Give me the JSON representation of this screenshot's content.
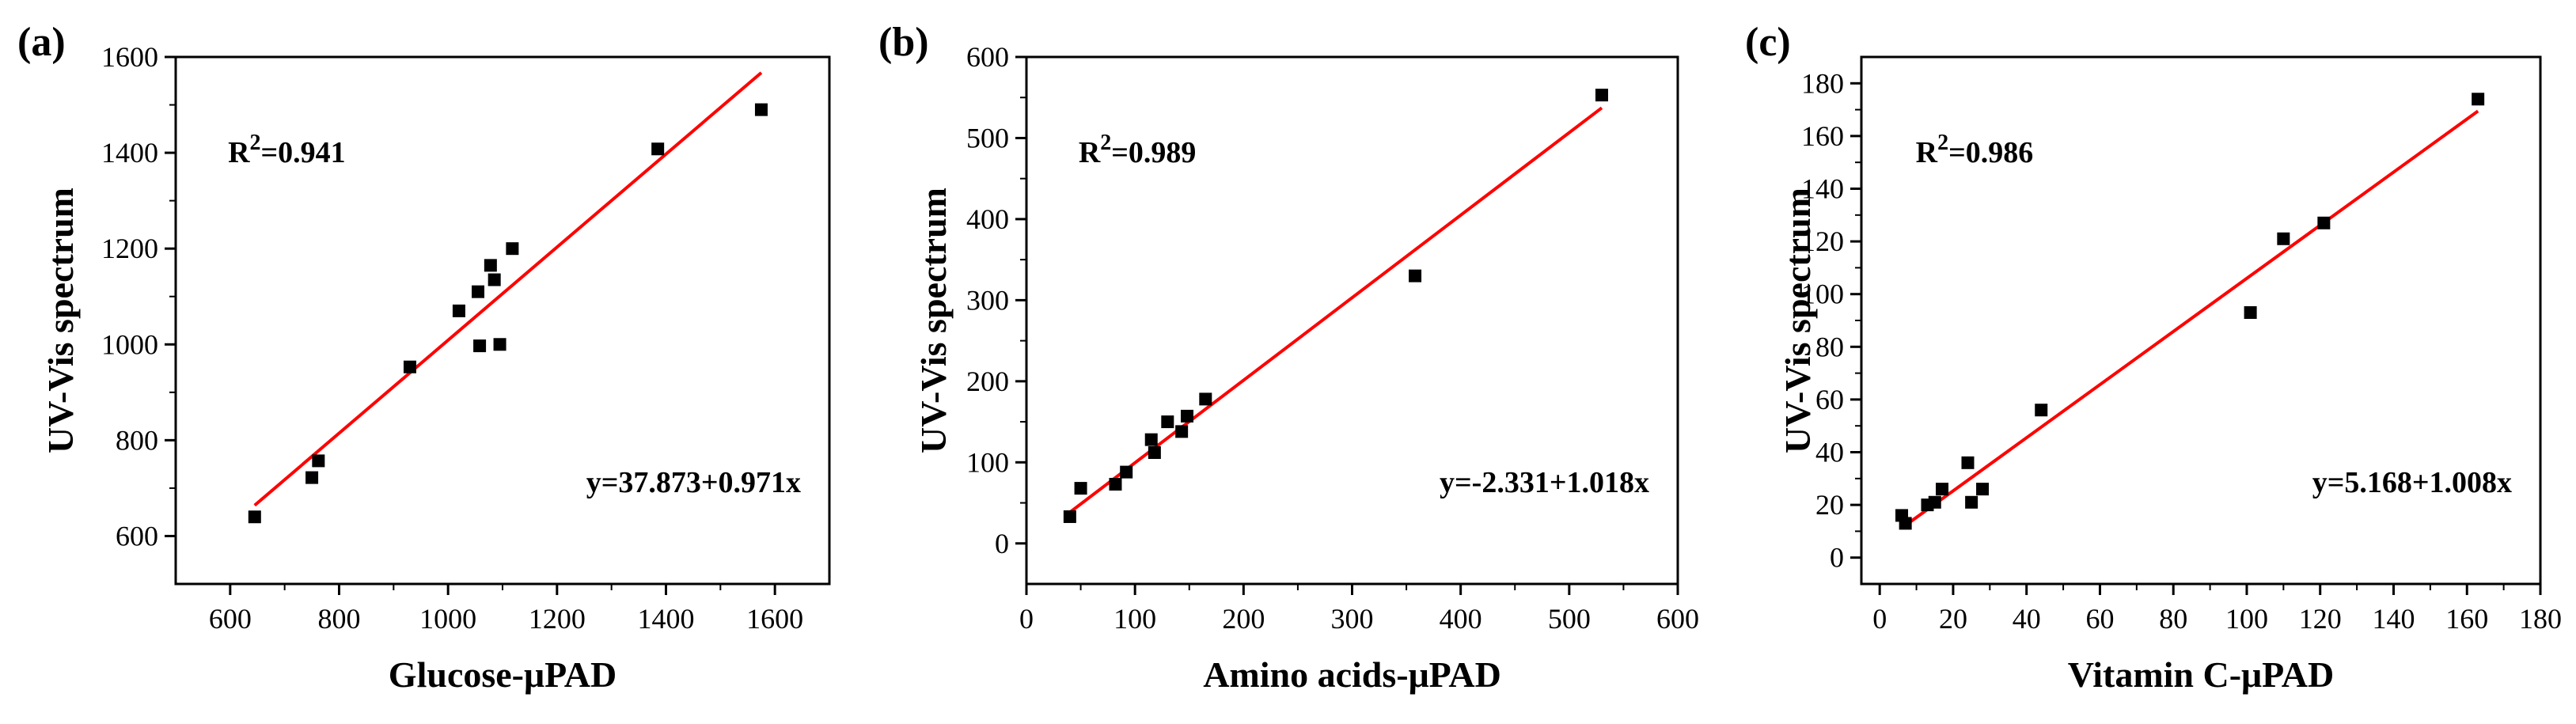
{
  "colors": {
    "fit_line": "#ff0000",
    "marker": "#000000",
    "axis": "#000000"
  },
  "chart_data": [
    {
      "type": "scatter",
      "panel_label": "(a)",
      "xlabel": "Glucose-μPAD",
      "ylabel": "UV-Vis spectrum",
      "xlim": [
        500,
        1700
      ],
      "ylim": [
        500,
        1600
      ],
      "xticks": [
        600,
        800,
        1000,
        1200,
        1400,
        1600
      ],
      "yticks": [
        600,
        800,
        1000,
        1200,
        1400,
        1600
      ],
      "r2_prefix": "R",
      "r2_sup": "2",
      "r2_value": "=0.941",
      "equation": "y=37.873+0.971x",
      "fit": {
        "intercept": 37.873,
        "slope": 0.971,
        "x_range": [
          645,
          1575
        ]
      },
      "series": [
        {
          "x": [
            645,
            750,
            762,
            930,
            1020,
            1055,
            1058,
            1078,
            1085,
            1095,
            1118,
            1385,
            1575
          ],
          "y": [
            640,
            722,
            757,
            953,
            1070,
            1110,
            997,
            1165,
            1135,
            1000,
            1200,
            1408,
            1490
          ]
        }
      ]
    },
    {
      "type": "scatter",
      "panel_label": "(b)",
      "xlabel": "Amino acids-μPAD",
      "ylabel": "UV-Vis spectrum",
      "xlim": [
        0,
        600
      ],
      "ylim": [
        -50,
        600
      ],
      "xticks": [
        0,
        100,
        200,
        300,
        400,
        500,
        600
      ],
      "yticks": [
        0,
        100,
        200,
        300,
        400,
        500,
        600
      ],
      "r2_prefix": "R",
      "r2_sup": "2",
      "r2_value": "=0.989",
      "equation": "y=-2.331+1.018x",
      "fit": {
        "intercept": -2.331,
        "slope": 1.018,
        "x_range": [
          40,
          530
        ]
      },
      "series": [
        {
          "x": [
            40,
            50,
            82,
            92,
            115,
            118,
            130,
            143,
            148,
            165,
            358,
            530
          ],
          "y": [
            33,
            68,
            73,
            88,
            128,
            112,
            150,
            138,
            157,
            178,
            330,
            553
          ]
        }
      ]
    },
    {
      "type": "scatter",
      "panel_label": "(c)",
      "xlabel": "Vitamin C-μPAD",
      "ylabel": "UV-Vis spectrum",
      "xlim": [
        -5,
        180
      ],
      "ylim": [
        -10,
        190
      ],
      "xticks": [
        0,
        20,
        40,
        60,
        80,
        100,
        120,
        140,
        160,
        180
      ],
      "yticks": [
        0,
        20,
        40,
        60,
        80,
        100,
        120,
        140,
        160,
        180
      ],
      "r2_prefix": "R",
      "r2_sup": "2",
      "r2_value": "=0.986",
      "equation": "y=5.168+1.008x",
      "fit": {
        "intercept": 5.168,
        "slope": 1.008,
        "x_range": [
          6,
          163
        ]
      },
      "series": [
        {
          "x": [
            6,
            7,
            13,
            15,
            17,
            24,
            25,
            28,
            44,
            101,
            110,
            121,
            163
          ],
          "y": [
            16,
            13,
            20,
            21,
            26,
            36,
            21,
            26,
            56,
            93,
            121,
            127,
            174
          ]
        }
      ]
    }
  ]
}
